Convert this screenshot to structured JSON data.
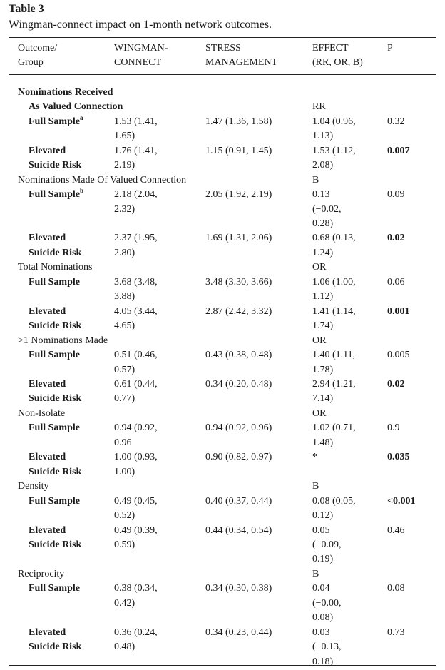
{
  "title": "Table 3",
  "caption": "Wingman-connect impact on 1-month network outcomes.",
  "headers": [
    "Outcome/\nGroup",
    "WINGMAN-\nCONNECT",
    "STRESS\nMANAGEMENT",
    "EFFECT\n(RR, OR, B)",
    "P"
  ],
  "rows": [
    {
      "kind": "section",
      "label": "Nominations Received",
      "bold": true
    },
    {
      "kind": "sub",
      "label": "As Valued Connection",
      "bold": true,
      "effect": "RR"
    },
    {
      "kind": "data",
      "group": "Full Sample",
      "sup": "a",
      "wc": "1.53 (1.41,\n1.65)",
      "sm": "1.47 (1.36, 1.58)",
      "effect": "1.04 (0.96,\n1.13)",
      "p": "0.32",
      "pbold": false
    },
    {
      "kind": "data",
      "group": "Elevated\nSuicide Risk",
      "wc": "1.76 (1.41,\n2.19)",
      "sm": "1.15 (0.91, 1.45)",
      "effect": "1.53 (1.12,\n2.08)",
      "p": "0.007",
      "pbold": true
    },
    {
      "kind": "section",
      "label": "Nominations Made Of Valued Connection",
      "effect": "B"
    },
    {
      "kind": "data",
      "group": "Full Sample",
      "sup": "b",
      "wc": "2.18 (2.04,\n2.32)",
      "sm": "2.05 (1.92, 2.19)",
      "effect": "0.13\n(−0.02,\n0.28)",
      "p": "0.09",
      "pbold": false
    },
    {
      "kind": "data",
      "group": "Elevated\nSuicide Risk",
      "wc": "2.37 (1.95,\n2.80)",
      "sm": "1.69 (1.31, 2.06)",
      "effect": "0.68 (0.13,\n1.24)",
      "p": "0.02",
      "pbold": true
    },
    {
      "kind": "section",
      "label": "Total Nominations",
      "effect": "OR"
    },
    {
      "kind": "data",
      "group": "Full Sample",
      "wc": "3.68 (3.48,\n3.88)",
      "sm": "3.48 (3.30, 3.66)",
      "effect": "1.06 (1.00,\n1.12)",
      "p": "0.06",
      "pbold": false
    },
    {
      "kind": "data",
      "group": "Elevated\nSuicide Risk",
      "wc": "4.05 (3.44,\n4.65)",
      "sm": "2.87 (2.42, 3.32)",
      "effect": "1.41 (1.14,\n1.74)",
      "p": "0.001",
      "pbold": true
    },
    {
      "kind": "section",
      "label": ">1 Nominations Made",
      "effect": "OR"
    },
    {
      "kind": "data",
      "group": "Full Sample",
      "wc": "0.51 (0.46,\n0.57)",
      "sm": "0.43 (0.38, 0.48)",
      "effect": "1.40 (1.11,\n1.78)",
      "p": "0.005",
      "pbold": false
    },
    {
      "kind": "data",
      "group": "Elevated\nSuicide Risk",
      "wc": "0.61 (0.44,\n0.77)",
      "sm": "0.34 (0.20, 0.48)",
      "effect": "2.94 (1.21,\n7.14)",
      "p": "0.02",
      "pbold": true
    },
    {
      "kind": "section",
      "label": "Non-Isolate",
      "effect": "OR"
    },
    {
      "kind": "data",
      "group": "Full Sample",
      "wc": "0.94 (0.92,\n0.96",
      "sm": "0.94 (0.92, 0.96)",
      "effect": "1.02 (0.71,\n1.48)",
      "p": "0.9",
      "pbold": false
    },
    {
      "kind": "data",
      "group": "Elevated\nSuicide Risk",
      "wc": "1.00 (0.93,\n1.00)",
      "sm": "0.90 (0.82, 0.97)",
      "effect": "*",
      "p": "0.035",
      "pbold": true
    },
    {
      "kind": "section",
      "label": "Density",
      "effect": "B"
    },
    {
      "kind": "data",
      "group": "Full Sample",
      "wc": "0.49 (0.45,\n0.52)",
      "sm": "0.40 (0.37, 0.44)",
      "effect": "0.08 (0.05,\n0.12)",
      "p": "<0.001",
      "pbold": true
    },
    {
      "kind": "data",
      "group": "Elevated\nSuicide Risk",
      "wc": "0.49 (0.39,\n0.59)",
      "sm": "0.44 (0.34, 0.54)",
      "effect": "0.05\n(−0.09,\n0.19)",
      "p": "0.46",
      "pbold": false
    },
    {
      "kind": "section",
      "label": "Reciprocity",
      "effect": "B"
    },
    {
      "kind": "data",
      "group": "Full Sample",
      "wc": "0.38 (0.34,\n0.42)",
      "sm": "0.34 (0.30, 0.38)",
      "effect": "0.04\n(−0.00,\n0.08)",
      "p": "0.08",
      "pbold": false
    },
    {
      "kind": "data",
      "group": "Elevated\nSuicide Risk",
      "wc": "0.36 (0.24,\n0.48)",
      "sm": "0.34 (0.23, 0.44)",
      "effect": "0.03\n(−0.13,\n0.18)",
      "p": "0.73",
      "pbold": false
    }
  ]
}
